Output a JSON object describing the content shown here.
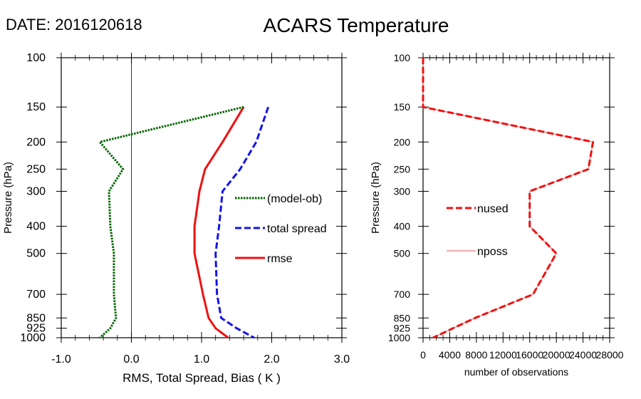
{
  "header": {
    "date_label": "DATE: 2016120618",
    "title": "ACARS Temperature"
  },
  "chart_data": [
    {
      "type": "line",
      "title": "ACARS Temperature",
      "xlabel": "RMS, Total Spread, Bias ( K )",
      "ylabel": "Pressure (hPa)",
      "y_scale": "log",
      "y_reversed": true,
      "xlim": [
        -1.0,
        3.0
      ],
      "ylim": [
        100,
        1000
      ],
      "x_ticks": [
        -1.0,
        0.0,
        1.0,
        2.0,
        3.0
      ],
      "x_tick_labels": [
        "-1.0",
        "0.0",
        "1.0",
        "2.0",
        "3.0"
      ],
      "y_ticks": [
        100,
        150,
        200,
        250,
        300,
        400,
        500,
        700,
        850,
        925,
        1000
      ],
      "y_tick_labels": [
        "100",
        "150",
        "200",
        "250",
        "300",
        "400",
        "500",
        "700",
        "850",
        "925",
        "1000"
      ],
      "zero_line": 0.0,
      "legend_position": "center-right",
      "series": [
        {
          "name": "(model-ob)",
          "color": "#006400",
          "style": "dotted",
          "points": [
            [
              1.6,
              150
            ],
            [
              -0.45,
              200
            ],
            [
              -0.12,
              250
            ],
            [
              -0.32,
              300
            ],
            [
              -0.3,
              400
            ],
            [
              -0.25,
              500
            ],
            [
              -0.25,
              700
            ],
            [
              -0.22,
              850
            ],
            [
              -0.3,
              925
            ],
            [
              -0.45,
              1000
            ]
          ]
        },
        {
          "name": "total spread",
          "color": "#1414e6",
          "style": "dashed",
          "points": [
            [
              1.95,
              150
            ],
            [
              1.78,
              200
            ],
            [
              1.55,
              250
            ],
            [
              1.3,
              300
            ],
            [
              1.25,
              400
            ],
            [
              1.2,
              500
            ],
            [
              1.22,
              700
            ],
            [
              1.28,
              850
            ],
            [
              1.5,
              925
            ],
            [
              1.75,
              1000
            ]
          ]
        },
        {
          "name": "rmse",
          "color": "#ee1111",
          "style": "solid",
          "points": [
            [
              1.6,
              150
            ],
            [
              1.3,
              200
            ],
            [
              1.05,
              250
            ],
            [
              0.97,
              300
            ],
            [
              0.9,
              400
            ],
            [
              0.9,
              500
            ],
            [
              1.02,
              700
            ],
            [
              1.1,
              850
            ],
            [
              1.2,
              925
            ],
            [
              1.38,
              1000
            ]
          ]
        }
      ]
    },
    {
      "type": "line",
      "xlabel": "number of observations",
      "ylabel": "Pressure (hPa)",
      "y_scale": "log",
      "y_reversed": true,
      "xlim": [
        0,
        28000
      ],
      "ylim": [
        100,
        1000
      ],
      "x_ticks": [
        0,
        4000,
        8000,
        12000,
        16000,
        20000,
        24000,
        28000
      ],
      "x_tick_labels": [
        "0",
        "4000",
        "8000",
        "12000",
        "16000",
        "20000",
        "24000",
        "28000"
      ],
      "y_ticks": [
        100,
        150,
        200,
        250,
        300,
        400,
        500,
        700,
        850,
        925,
        1000
      ],
      "y_tick_labels": [
        "100",
        "150",
        "200",
        "250",
        "300",
        "400",
        "500",
        "700",
        "850",
        "925",
        "1000"
      ],
      "legend_position": "center-left",
      "series": [
        {
          "name": "nused",
          "color": "#ee1111",
          "style": "dashed",
          "points": [
            [
              0,
              100
            ],
            [
              0,
              150
            ],
            [
              25500,
              200
            ],
            [
              24800,
              250
            ],
            [
              16000,
              300
            ],
            [
              16000,
              400
            ],
            [
              20000,
              500
            ],
            [
              16500,
              700
            ],
            [
              7800,
              850
            ],
            [
              4500,
              925
            ],
            [
              1500,
              1000
            ]
          ]
        },
        {
          "name": "nposs",
          "color": "#ee7777",
          "style": "solid",
          "points": [
            [
              0,
              100
            ],
            [
              0,
              150
            ],
            [
              25500,
              200
            ],
            [
              24800,
              250
            ],
            [
              16000,
              300
            ],
            [
              16000,
              400
            ],
            [
              20000,
              500
            ],
            [
              16500,
              700
            ],
            [
              7800,
              850
            ],
            [
              4500,
              925
            ],
            [
              1500,
              1000
            ]
          ]
        }
      ]
    }
  ]
}
